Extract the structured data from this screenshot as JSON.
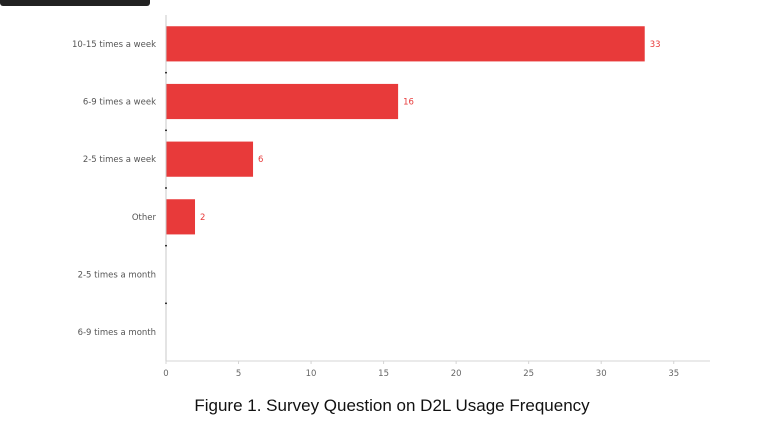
{
  "chart_data": {
    "type": "bar",
    "orientation": "horizontal",
    "categories": [
      "10-15 times a week",
      "6-9 times a week",
      "2-5 times a week",
      "Other",
      "2-5 times a month",
      "6-9 times a month"
    ],
    "values": [
      33,
      16,
      6,
      2,
      0,
      0
    ],
    "xlim": [
      0,
      37.5
    ],
    "xticks": [
      0,
      5,
      10,
      15,
      20,
      25,
      30,
      35
    ],
    "grid": false,
    "bar_color": "#e83a3a",
    "label_color": "#e83a3a"
  },
  "caption": "Figure 1. Survey Question on D2L Usage Frequency"
}
